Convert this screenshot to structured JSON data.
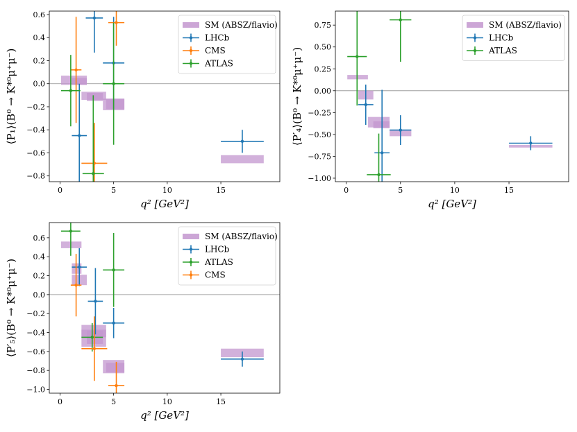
{
  "colors": {
    "sm": "#c397cf",
    "lhcb": "#1f77b4",
    "cms": "#ff7f0e",
    "atlas": "#2ca02c"
  },
  "chart_data": [
    {
      "id": "p1",
      "type": "errorbar",
      "ylabel": "⟨P₁⟩(B⁰ → K*⁰μ⁺μ⁻)",
      "xlabel": "q² [GeV²]",
      "xlim": [
        -1,
        20.5
      ],
      "ylim": [
        -0.85,
        0.63
      ],
      "xticks": [
        0,
        5,
        10,
        15
      ],
      "yticks": [
        -0.8,
        -0.6,
        -0.4,
        -0.2,
        0.0,
        0.2,
        0.4,
        0.6
      ],
      "ytick_labels": [
        "−0.8",
        "−0.6",
        "−0.4",
        "−0.2",
        "0.0",
        "0.2",
        "0.4",
        "0.6"
      ],
      "legend": [
        "SM (ABSZ/flavio)",
        "LHCb",
        "CMS",
        "ATLAS"
      ],
      "legend_position": "top-right",
      "sm_bins": [
        {
          "x0": 0.1,
          "x1": 2.5,
          "y0": -0.01,
          "y1": 0.07
        },
        {
          "x0": 1.1,
          "x1": 2.5,
          "y0": -0.01,
          "y1": 0.05
        },
        {
          "x0": 2.0,
          "x1": 4.3,
          "y0": -0.14,
          "y1": -0.07
        },
        {
          "x0": 2.5,
          "x1": 4.0,
          "y0": -0.15,
          "y1": -0.08
        },
        {
          "x0": 4.0,
          "x1": 6.0,
          "y0": -0.23,
          "y1": -0.13
        },
        {
          "x0": 4.3,
          "x1": 6.0,
          "y0": -0.22,
          "y1": -0.13
        },
        {
          "x0": 15.0,
          "x1": 19.0,
          "y0": -0.69,
          "y1": -0.62
        }
      ],
      "series": [
        {
          "name": "LHCb",
          "points": [
            {
              "x": 1.8,
              "y": -0.45,
              "xerr": 0.7,
              "yerr": 0.45
            },
            {
              "x": 3.2,
              "y": 0.57,
              "xerr": 0.8,
              "yerr": 0.3
            },
            {
              "x": 5.0,
              "y": 0.18,
              "xerr": 1.0,
              "yerr": 0.4
            },
            {
              "x": 17.0,
              "y": -0.5,
              "xerr": 2.0,
              "yerr": 0.1
            }
          ]
        },
        {
          "name": "CMS",
          "points": [
            {
              "x": 1.5,
              "y": 0.12,
              "xerr": 0.5,
              "yerr": 0.46
            },
            {
              "x": 3.2,
              "y": -0.69,
              "xerr": 1.2,
              "yerr": 0.35
            },
            {
              "x": 5.25,
              "y": 0.53,
              "xerr": 0.75,
              "yerr": 0.2
            }
          ]
        },
        {
          "name": "ATLAS",
          "points": [
            {
              "x": 1.0,
              "y": -0.06,
              "xerr": 0.9,
              "yerr": 0.31
            },
            {
              "x": 3.1,
              "y": -0.78,
              "xerr": 1.0,
              "yerr": 0.68
            },
            {
              "x": 5.0,
              "y": 0.0,
              "xerr": 1.0,
              "yerr": 0.53
            }
          ]
        }
      ]
    },
    {
      "id": "p4",
      "type": "errorbar",
      "ylabel": "⟨P′₄⟩(B⁰ → K*⁰μ⁺μ⁻)",
      "xlabel": "q² [GeV²]",
      "xlim": [
        -1,
        20.5
      ],
      "ylim": [
        -1.04,
        0.91
      ],
      "xticks": [
        0,
        5,
        10,
        15
      ],
      "yticks": [
        -1.0,
        -0.75,
        -0.5,
        -0.25,
        0.0,
        0.25,
        0.5,
        0.75
      ],
      "ytick_labels": [
        "−1.00",
        "−0.75",
        "−0.50",
        "−0.25",
        "0.00",
        "0.25",
        "0.50",
        "0.75"
      ],
      "legend": [
        "SM (ABSZ/flavio)",
        "LHCb",
        "ATLAS"
      ],
      "legend_position": "top-right",
      "sm_bins": [
        {
          "x0": 0.1,
          "x1": 2.0,
          "y0": 0.13,
          "y1": 0.18
        },
        {
          "x0": 1.1,
          "x1": 2.5,
          "y0": -0.1,
          "y1": 0.0
        },
        {
          "x0": 2.0,
          "x1": 4.0,
          "y0": -0.42,
          "y1": -0.3
        },
        {
          "x0": 2.5,
          "x1": 4.0,
          "y0": -0.43,
          "y1": -0.35
        },
        {
          "x0": 4.0,
          "x1": 6.0,
          "y0": -0.52,
          "y1": -0.45
        },
        {
          "x0": 15.0,
          "x1": 19.0,
          "y0": -0.65,
          "y1": -0.62
        }
      ],
      "series": [
        {
          "name": "LHCb",
          "points": [
            {
              "x": 1.8,
              "y": -0.16,
              "xerr": 0.7,
              "yerr": 0.23
            },
            {
              "x": 3.3,
              "y": -0.71,
              "xerr": 0.7,
              "yerr": 0.72
            },
            {
              "x": 5.0,
              "y": -0.45,
              "xerr": 1.0,
              "yerr": 0.17
            },
            {
              "x": 17.0,
              "y": -0.6,
              "xerr": 2.0,
              "yerr": 0.08
            }
          ]
        },
        {
          "name": "ATLAS",
          "points": [
            {
              "x": 1.0,
              "y": 0.39,
              "xerr": 0.9,
              "yerr": 0.56
            },
            {
              "x": 3.0,
              "y": -0.96,
              "xerr": 1.1,
              "yerr": 0.47
            },
            {
              "x": 5.0,
              "y": 0.81,
              "xerr": 1.0,
              "yerr": 0.48
            }
          ]
        }
      ]
    },
    {
      "id": "p5",
      "type": "errorbar",
      "ylabel": "⟨P′₅⟩(B⁰ → K*⁰μ⁺μ⁻)",
      "xlabel": "q² [GeV²]",
      "xlim": [
        -1,
        20.5
      ],
      "ylim": [
        -1.04,
        0.76
      ],
      "xticks": [
        0,
        5,
        10,
        15
      ],
      "yticks": [
        -1.0,
        -0.8,
        -0.6,
        -0.4,
        -0.2,
        0.0,
        0.2,
        0.4,
        0.6
      ],
      "ytick_labels": [
        "−1.0",
        "−0.8",
        "−0.6",
        "−0.4",
        "−0.2",
        "0.0",
        "0.2",
        "0.4",
        "0.6"
      ],
      "legend": [
        "SM (ABSZ/flavio)",
        "LHCb",
        "ATLAS",
        "CMS"
      ],
      "legend_position": "top-right",
      "sm_bins": [
        {
          "x0": 0.1,
          "x1": 2.0,
          "y0": 0.49,
          "y1": 0.56
        },
        {
          "x0": 1.1,
          "x1": 2.0,
          "y0": 0.22,
          "y1": 0.33
        },
        {
          "x0": 1.1,
          "x1": 2.5,
          "y0": 0.1,
          "y1": 0.21
        },
        {
          "x0": 2.0,
          "x1": 4.3,
          "y0": -0.45,
          "y1": -0.32
        },
        {
          "x0": 2.0,
          "x1": 4.3,
          "y0": -0.55,
          "y1": -0.37
        },
        {
          "x0": 2.5,
          "x1": 4.0,
          "y0": -0.52,
          "y1": -0.38
        },
        {
          "x0": 4.0,
          "x1": 6.0,
          "y0": -0.83,
          "y1": -0.69
        },
        {
          "x0": 4.3,
          "x1": 6.0,
          "y0": -0.82,
          "y1": -0.72
        },
        {
          "x0": 15.0,
          "x1": 19.0,
          "y0": -0.66,
          "y1": -0.57
        }
      ],
      "series": [
        {
          "name": "LHCb",
          "points": [
            {
              "x": 1.8,
              "y": 0.29,
              "xerr": 0.7,
              "yerr": 0.2
            },
            {
              "x": 3.3,
              "y": -0.07,
              "xerr": 0.7,
              "yerr": 0.35
            },
            {
              "x": 5.0,
              "y": -0.3,
              "xerr": 1.0,
              "yerr": 0.16
            },
            {
              "x": 17.0,
              "y": -0.68,
              "xerr": 2.0,
              "yerr": 0.08
            }
          ]
        },
        {
          "name": "ATLAS",
          "points": [
            {
              "x": 1.0,
              "y": 0.67,
              "xerr": 0.9,
              "yerr": 0.26
            },
            {
              "x": 3.0,
              "y": -0.45,
              "xerr": 1.0,
              "yerr": 0.15
            },
            {
              "x": 5.0,
              "y": 0.26,
              "xerr": 1.0,
              "yerr": 0.39
            }
          ]
        },
        {
          "name": "CMS",
          "points": [
            {
              "x": 1.5,
              "y": 0.1,
              "xerr": 0.5,
              "yerr": 0.33
            },
            {
              "x": 3.2,
              "y": -0.57,
              "xerr": 1.2,
              "yerr": 0.34
            },
            {
              "x": 5.25,
              "y": -0.96,
              "xerr": 0.75,
              "yerr": 0.25
            }
          ]
        }
      ]
    }
  ]
}
